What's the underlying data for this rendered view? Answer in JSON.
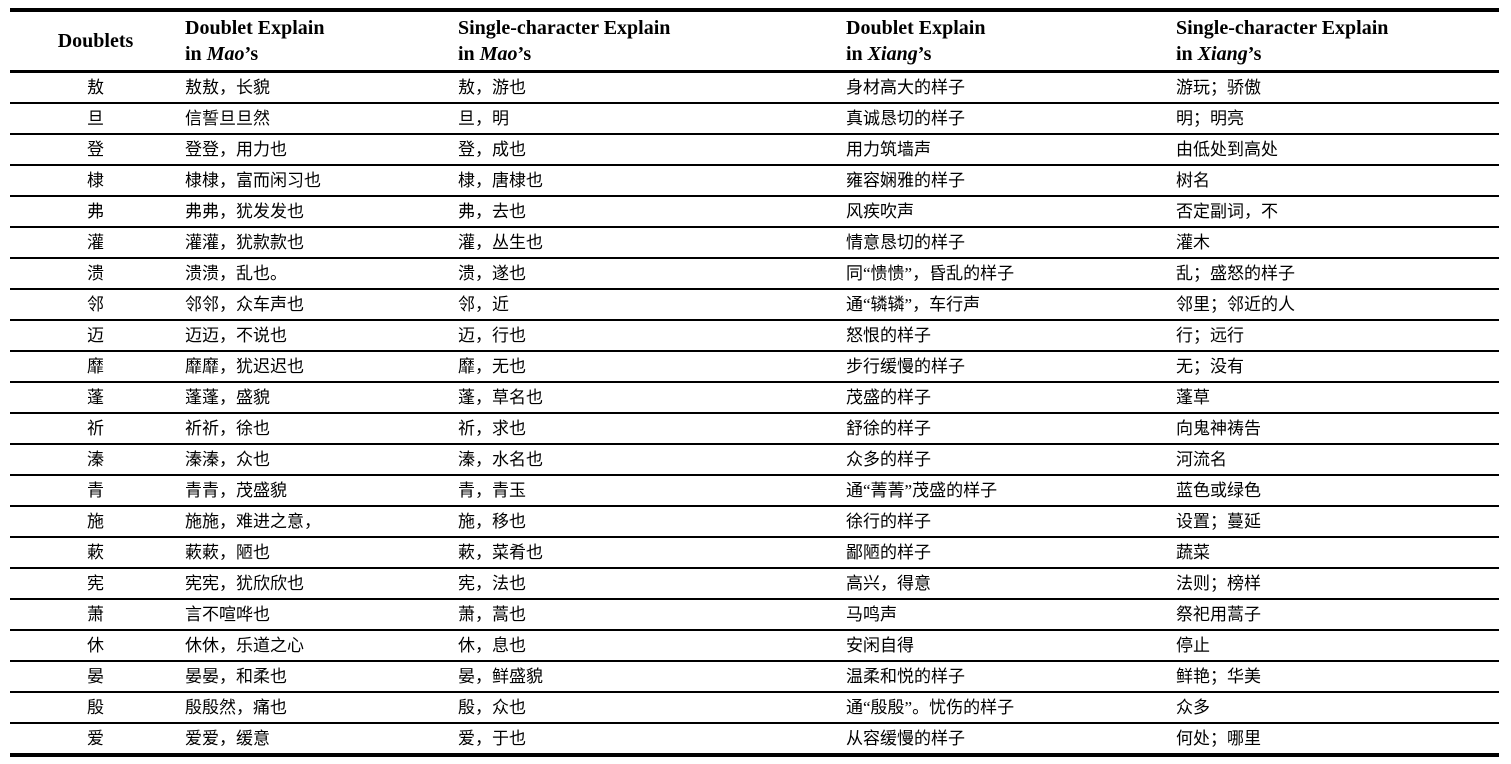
{
  "table": {
    "headers": [
      {
        "line1": "Doublets",
        "line2_prefix": "",
        "source_name": "",
        "line2_suffix": ""
      },
      {
        "line1": "Doublet Explain",
        "line2_prefix": "in ",
        "source_name": "Mao",
        "line2_suffix": "’s"
      },
      {
        "line1": "Single-character Explain",
        "line2_prefix": "in ",
        "source_name": "Mao",
        "line2_suffix": "’s"
      },
      {
        "line1": "Doublet Explain",
        "line2_prefix": "in ",
        "source_name": "Xiang",
        "line2_suffix": "’s"
      },
      {
        "line1": "Single-character Explain",
        "line2_prefix": "in ",
        "source_name": "Xiang",
        "line2_suffix": "’s"
      }
    ],
    "rows": [
      [
        "敖",
        "敖敖，长貌",
        "敖，游也",
        "身材高大的样子",
        "游玩；骄傲"
      ],
      [
        "旦",
        "信誓旦旦然",
        "旦，明",
        "真诚恳切的样子",
        "明；明亮"
      ],
      [
        "登",
        "登登，用力也",
        "登，成也",
        "用力筑墙声",
        "由低处到高处"
      ],
      [
        "棣",
        "棣棣，富而闲习也",
        "棣，唐棣也",
        "雍容娴雅的样子",
        "树名"
      ],
      [
        "弗",
        "弗弗，犹发发也",
        "弗，去也",
        "风疾吹声",
        "否定副词，不"
      ],
      [
        "灌",
        "灌灌，犹款款也",
        "灌，丛生也",
        "情意恳切的样子",
        "灌木"
      ],
      [
        "溃",
        "溃溃，乱也。",
        "溃，遂也",
        "同“愦愦”，昏乱的样子",
        "乱；盛怒的样子"
      ],
      [
        "邻",
        "邻邻，众车声也",
        "邻，近",
        "通“辚辚”，车行声",
        "邻里；邻近的人"
      ],
      [
        "迈",
        "迈迈，不说也",
        "迈，行也",
        "怒恨的样子",
        "行；远行"
      ],
      [
        "靡",
        "靡靡，犹迟迟也",
        "靡，无也",
        "步行缓慢的样子",
        "无；没有"
      ],
      [
        "蓬",
        "蓬蓬，盛貌",
        "蓬，草名也",
        "茂盛的样子",
        "蓬草"
      ],
      [
        "祈",
        "祈祈，徐也",
        "祈，求也",
        "舒徐的样子",
        "向鬼神祷告"
      ],
      [
        "溱",
        "溱溱，众也",
        "溱，水名也",
        "众多的样子",
        "河流名"
      ],
      [
        "青",
        "青青，茂盛貌",
        "青，青玉",
        "通“菁菁”茂盛的样子",
        "蓝色或绿色"
      ],
      [
        "施",
        "施施，难进之意，",
        "施，移也",
        "徐行的样子",
        "设置；蔓延"
      ],
      [
        "蔌",
        "蔌蔌，陋也",
        "蔌，菜肴也",
        "鄙陋的样子",
        "蔬菜"
      ],
      [
        "宪",
        "宪宪，犹欣欣也",
        "宪，法也",
        "高兴，得意",
        "法则；榜样"
      ],
      [
        "萧",
        "言不喧哗也",
        "萧，蒿也",
        "马鸣声",
        "祭祀用蒿子"
      ],
      [
        "休",
        "休休，乐道之心",
        "休，息也",
        "安闲自得",
        "停止"
      ],
      [
        "晏",
        "晏晏，和柔也",
        "晏，鲜盛貌",
        "温柔和悦的样子",
        "鲜艳；华美"
      ],
      [
        "殷",
        "殷殷然，痛也",
        "殷，众也",
        "通“殷殷”。忧伤的样子",
        "众多"
      ],
      [
        "爱",
        "爱爱，缓意",
        "爱，于也",
        "从容缓慢的样子",
        "何处；哪里"
      ]
    ]
  }
}
